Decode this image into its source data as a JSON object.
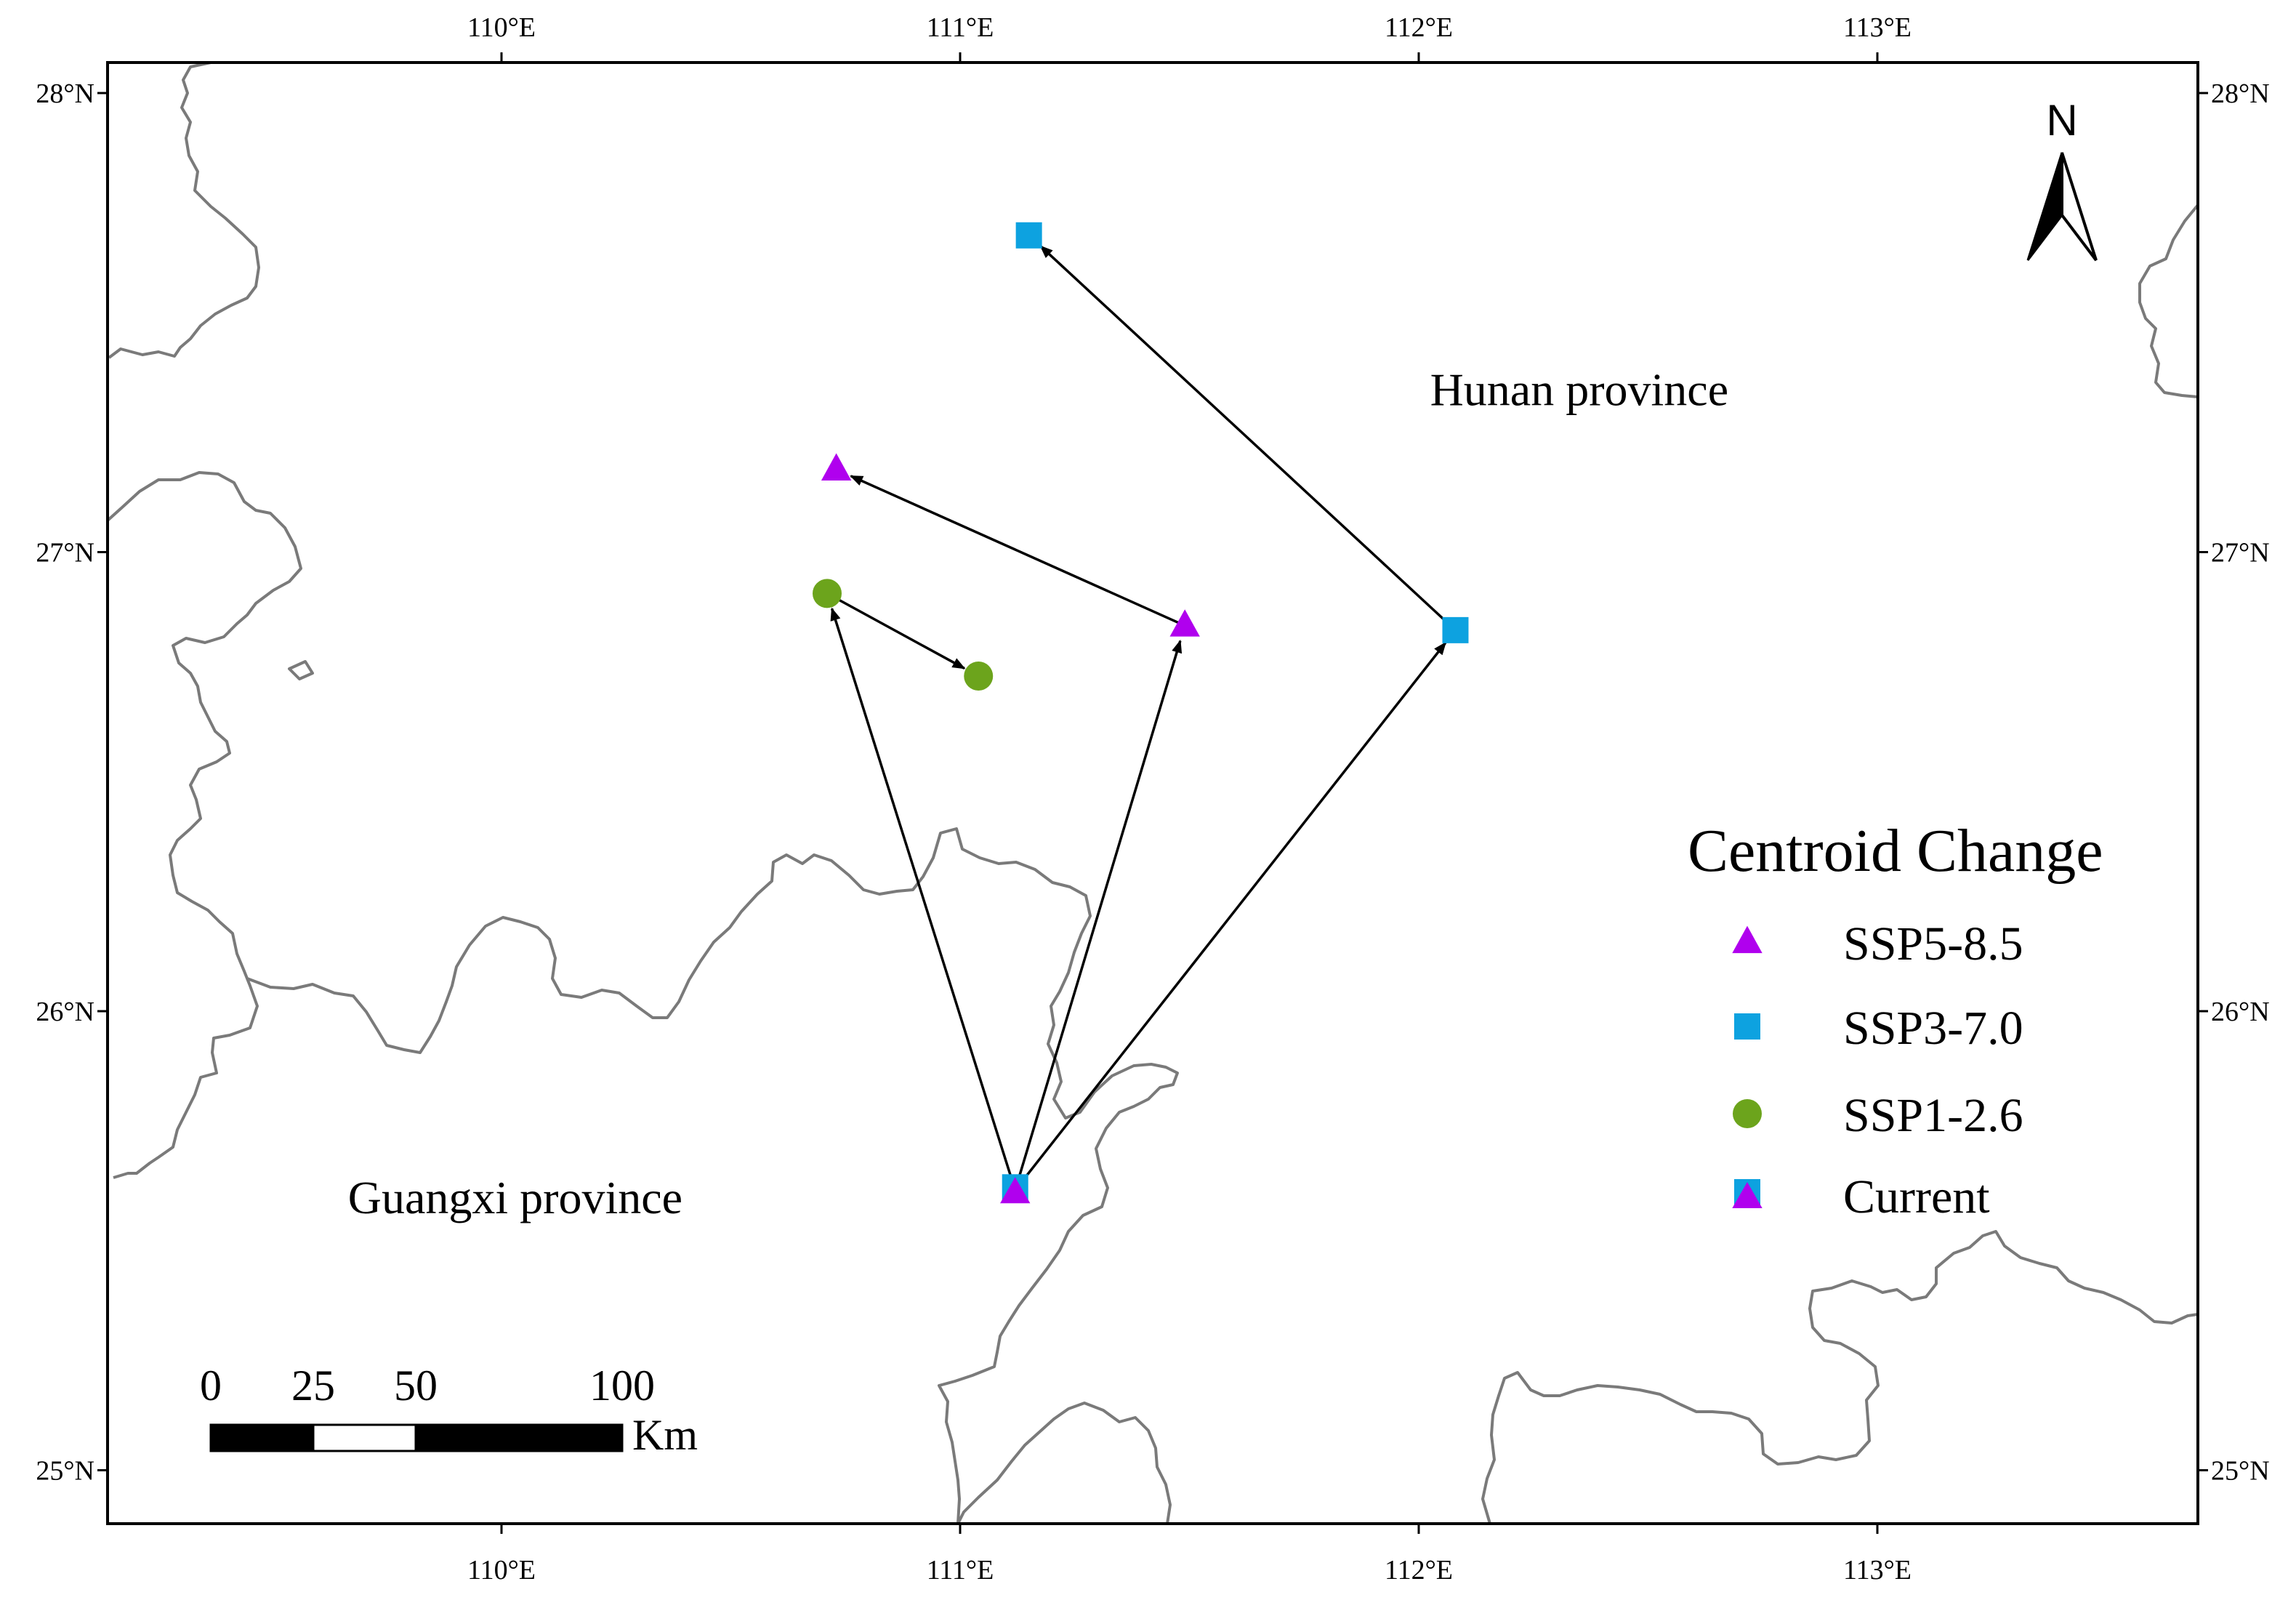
{
  "map": {
    "extent": {
      "lon_min": 109.1,
      "lon_max": 113.7,
      "lat_min": 24.9,
      "lat_max": 28.07
    },
    "lon_ticks": [
      {
        "value": 110,
        "label": "110°E"
      },
      {
        "value": 111,
        "label": "111°E"
      },
      {
        "value": 112,
        "label": "112°E"
      },
      {
        "value": 113,
        "label": "113°E"
      }
    ],
    "lat_ticks": [
      {
        "value": 28,
        "label": "28°N"
      },
      {
        "value": 27,
        "label": "27°N"
      },
      {
        "value": 26,
        "label": "26°N"
      },
      {
        "value": 25,
        "label": "25°N"
      }
    ],
    "regions": [
      {
        "name": "Hunan province",
        "lon": 112.35,
        "lat": 27.32
      },
      {
        "name": "Guangxi province",
        "lon": 110.03,
        "lat": 25.56
      }
    ],
    "north_label": "N",
    "border_color": "#7a7a7a"
  },
  "legend": {
    "title": "Centroid Change",
    "items": [
      {
        "label": "SSP5-8.5",
        "symbol": "triangle",
        "color": "#b000ee"
      },
      {
        "label": "SSP3-7.0",
        "symbol": "square",
        "color": "#0da2e0"
      },
      {
        "label": "SSP1-2.6",
        "symbol": "circle",
        "color": "#6ca41c"
      },
      {
        "label": "Current",
        "symbol": "square-triangle",
        "color": "#0da2e0"
      }
    ]
  },
  "scale_bar": {
    "labels": [
      "0",
      "25",
      "50",
      "100"
    ],
    "unit": "Km"
  },
  "centroids": [
    {
      "scenario": "Current",
      "lon": 111.12,
      "lat": 25.61
    },
    {
      "scenario": "SSP5-8.5",
      "lon": 111.49,
      "lat": 26.84
    },
    {
      "scenario": "SSP5-8.5",
      "lon": 110.73,
      "lat": 27.18
    },
    {
      "scenario": "SSP3-7.0",
      "lon": 112.08,
      "lat": 26.83
    },
    {
      "scenario": "SSP3-7.0",
      "lon": 111.15,
      "lat": 27.69
    },
    {
      "scenario": "SSP1-2.6",
      "lon": 110.71,
      "lat": 26.91
    },
    {
      "scenario": "SSP1-2.6",
      "lon": 111.04,
      "lat": 26.73
    }
  ],
  "shifts": [
    {
      "from": [
        111.12,
        25.61
      ],
      "to": [
        110.71,
        26.91
      ]
    },
    {
      "from": [
        110.71,
        26.91
      ],
      "to": [
        111.04,
        26.73
      ]
    },
    {
      "from": [
        111.12,
        25.61
      ],
      "to": [
        111.49,
        26.84
      ]
    },
    {
      "from": [
        111.49,
        26.84
      ],
      "to": [
        110.73,
        27.18
      ]
    },
    {
      "from": [
        111.12,
        25.61
      ],
      "to": [
        112.08,
        26.83
      ]
    },
    {
      "from": [
        112.08,
        26.83
      ],
      "to": [
        111.15,
        27.69
      ]
    }
  ]
}
